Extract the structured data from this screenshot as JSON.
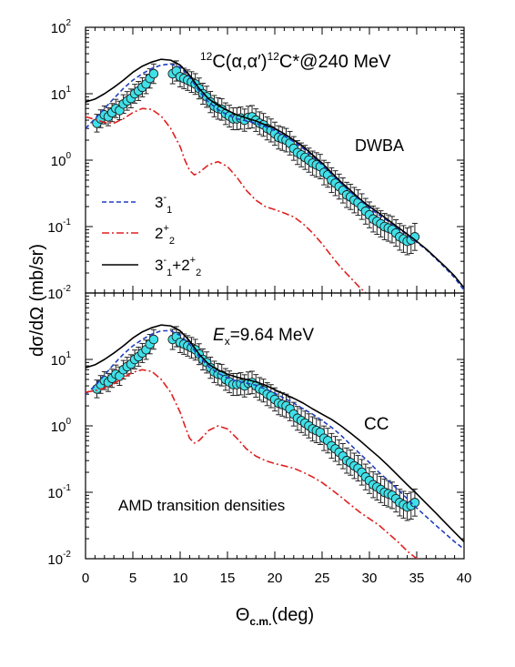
{
  "chart_data": [
    {
      "type": "line",
      "panel": "top",
      "title_parts": {
        "sup1": "12",
        "mid": "C(α,α′)",
        "sup2": "12",
        "tail": "C*@240 MeV"
      },
      "label": "DWBA",
      "ylabel": "dσ/dΩ (mb/sr)",
      "xlim": [
        0,
        40
      ],
      "ylim": [
        0.01,
        100
      ],
      "yscale": "log",
      "xticks": [
        "0",
        "5",
        "10",
        "15",
        "20",
        "25",
        "30",
        "35",
        "40"
      ],
      "yticks": [
        {
          "base": "10",
          "exp": "2"
        },
        {
          "base": "10",
          "exp": "1"
        },
        {
          "base": "10",
          "exp": "0"
        },
        {
          "base": "10",
          "exp": "-1"
        },
        {
          "base": "10",
          "exp": "-2"
        }
      ],
      "legend": [
        {
          "key": "3-1",
          "text": "3",
          "sup": "-",
          "sub": "1",
          "style": "dashed",
          "color": "#1f3fbf"
        },
        {
          "key": "2+2",
          "text": "2",
          "sup": "+",
          "sub": "2",
          "style": "dashdot",
          "color": "#e02020"
        },
        {
          "key": "sum",
          "text": "3⁻₁+2⁺₂",
          "style": "solid",
          "color": "#000000"
        }
      ],
      "series": [
        {
          "name": "3⁻₁",
          "style": "dashed",
          "color": "#1f3fbf",
          "x": [
            0,
            1,
            2,
            3,
            4,
            5,
            6,
            7,
            8,
            9,
            10,
            11,
            12,
            13,
            14,
            15,
            16,
            17,
            18,
            19,
            20,
            21,
            22,
            23,
            24,
            25,
            26,
            27,
            28,
            29,
            30,
            31,
            32,
            33,
            34,
            35,
            36,
            37,
            38,
            39,
            40
          ],
          "y": [
            3,
            4.2,
            6,
            8.5,
            12,
            16,
            20,
            24,
            27,
            28,
            25,
            18,
            11,
            7.5,
            5.8,
            4.8,
            4.2,
            3.9,
            3.6,
            3.2,
            2.8,
            2.3,
            1.9,
            1.5,
            1.15,
            0.85,
            0.62,
            0.45,
            0.33,
            0.25,
            0.19,
            0.15,
            0.12,
            0.095,
            0.075,
            0.058,
            0.045,
            0.033,
            0.024,
            0.017,
            0.011
          ]
        },
        {
          "name": "2⁺₂",
          "style": "dashdot",
          "color": "#e02020",
          "x": [
            0,
            1,
            2,
            3,
            4,
            5,
            6,
            7,
            8,
            9,
            10,
            10.5,
            11,
            11.5,
            12,
            13,
            14,
            15,
            16,
            17,
            18,
            19,
            20,
            21,
            22,
            23,
            24,
            25,
            26,
            27,
            28,
            29,
            30
          ],
          "y": [
            4.5,
            4.1,
            3.7,
            3.6,
            4.2,
            5.2,
            6,
            5.8,
            4.6,
            3,
            1.6,
            1,
            0.7,
            0.6,
            0.65,
            0.85,
            0.95,
            0.8,
            0.55,
            0.35,
            0.25,
            0.2,
            0.18,
            0.16,
            0.14,
            0.11,
            0.08,
            0.055,
            0.036,
            0.024,
            0.017,
            0.012,
            0.009
          ]
        },
        {
          "name": "3⁻₁+2⁺₂",
          "style": "solid",
          "color": "#000000",
          "x": [
            0,
            1,
            2,
            3,
            4,
            5,
            6,
            7,
            8,
            9,
            10,
            11,
            12,
            13,
            14,
            15,
            16,
            17,
            18,
            19,
            20,
            21,
            22,
            23,
            24,
            25,
            26,
            27,
            28,
            29,
            30,
            31,
            32,
            33,
            34,
            35,
            36,
            37,
            38,
            39,
            40
          ],
          "y": [
            7.5,
            8.3,
            10,
            12.5,
            16,
            21,
            26,
            30,
            33,
            32,
            27,
            19,
            12,
            8.4,
            6.7,
            5.6,
            4.8,
            4.3,
            3.9,
            3.4,
            3,
            2.5,
            2,
            1.6,
            1.2,
            0.9,
            0.65,
            0.47,
            0.35,
            0.26,
            0.2,
            0.16,
            0.125,
            0.098,
            0.077,
            0.06,
            0.046,
            0.034,
            0.025,
            0.018,
            0.012
          ]
        }
      ],
      "data_points": {
        "x": [
          1.2,
          1.6,
          2,
          2.4,
          2.8,
          3.2,
          3.6,
          4,
          4.4,
          4.8,
          5.2,
          5.6,
          6,
          6.4,
          6.8,
          7.2,
          9.2,
          9.6,
          10,
          10.4,
          10.8,
          11.2,
          11.6,
          12,
          12.4,
          12.8,
          13.2,
          13.6,
          14,
          14.4,
          14.8,
          15.2,
          15.6,
          16,
          16.4,
          16.8,
          17.2,
          17.6,
          18,
          18.4,
          18.8,
          19.2,
          19.6,
          20,
          20.4,
          20.8,
          21.2,
          21.6,
          22,
          22.4,
          22.8,
          23.2,
          23.6,
          24,
          24.4,
          24.8,
          25.2,
          25.6,
          26,
          26.4,
          26.8,
          27.2,
          27.6,
          28,
          28.4,
          28.8,
          29.2,
          29.6,
          30,
          30.4,
          30.8,
          31.2,
          31.6,
          32,
          32.4,
          32.8,
          33.2,
          33.6,
          34,
          34.4,
          34.8
        ],
        "y": [
          3.6,
          4.2,
          4.8,
          4.5,
          5.2,
          6,
          5.6,
          7,
          7.8,
          8.5,
          10,
          11,
          12.5,
          14,
          17,
          20,
          20,
          22,
          18,
          17,
          16,
          15,
          14,
          12,
          10,
          9,
          7.5,
          6.5,
          6,
          5.8,
          5,
          4.6,
          4.2,
          4.2,
          4.3,
          4,
          4.4,
          4.5,
          4,
          3.6,
          3.4,
          3,
          2.8,
          2.5,
          2.2,
          2.1,
          2,
          1.8,
          1.5,
          1.3,
          1.2,
          1.1,
          1,
          0.9,
          0.85,
          0.8,
          0.65,
          0.6,
          0.5,
          0.45,
          0.4,
          0.35,
          0.3,
          0.28,
          0.25,
          0.23,
          0.2,
          0.17,
          0.15,
          0.13,
          0.12,
          0.11,
          0.1,
          0.095,
          0.09,
          0.08,
          0.07,
          0.065,
          0.06,
          0.063,
          0.07
        ]
      }
    },
    {
      "type": "line",
      "panel": "bottom",
      "annotation_ex": {
        "italic": "E",
        "sub": "x",
        "rest": "=9.64 MeV"
      },
      "label": "CC",
      "annotation": "AMD transition densities",
      "xlabel": {
        "main": "Θ",
        "sub": "c.m.",
        "rest": "(deg)"
      },
      "xlim": [
        0,
        40
      ],
      "ylim": [
        0.01,
        100
      ],
      "yscale": "log",
      "xticks": [
        "0",
        "5",
        "10",
        "15",
        "20",
        "25",
        "30",
        "35",
        "40"
      ],
      "yticks": [
        {
          "base": "10",
          "exp": "1"
        },
        {
          "base": "10",
          "exp": "0"
        },
        {
          "base": "10",
          "exp": "-1"
        },
        {
          "base": "10",
          "exp": "-2"
        }
      ],
      "series": [
        {
          "name": "3⁻₁",
          "style": "dashed",
          "color": "#1f3fbf",
          "x": [
            0,
            1,
            2,
            3,
            4,
            5,
            6,
            7,
            8,
            9,
            10,
            11,
            12,
            13,
            14,
            15,
            16,
            17,
            18,
            19,
            20,
            21,
            22,
            23,
            24,
            25,
            26,
            27,
            28,
            29,
            30,
            31,
            32,
            33,
            34,
            35,
            36,
            37,
            38,
            39,
            40
          ],
          "y": [
            3,
            4,
            5.8,
            8.5,
            12,
            16,
            20,
            24,
            27,
            27,
            23,
            17,
            11,
            7.8,
            6.2,
            5.3,
            4.7,
            4.4,
            4.1,
            3.6,
            3.1,
            2.6,
            2.2,
            1.8,
            1.5,
            1.2,
            0.95,
            0.72,
            0.52,
            0.38,
            0.28,
            0.2,
            0.15,
            0.11,
            0.08,
            0.058,
            0.043,
            0.032,
            0.024,
            0.018,
            0.014
          ]
        },
        {
          "name": "2⁺₂",
          "style": "dashdot",
          "color": "#e02020",
          "x": [
            0,
            1,
            2,
            3,
            4,
            5,
            6,
            7,
            8,
            9,
            10,
            10.5,
            11,
            11.5,
            12,
            13,
            14,
            15,
            16,
            17,
            18,
            19,
            20,
            21,
            22,
            23,
            24,
            25,
            26,
            27,
            28,
            29,
            30,
            31,
            32,
            33,
            34,
            35,
            36
          ],
          "y": [
            3.2,
            3.4,
            3.7,
            4.3,
            5.3,
            6.4,
            7,
            6.6,
            5,
            3.2,
            1.6,
            1,
            0.65,
            0.55,
            0.6,
            0.85,
            1,
            0.9,
            0.65,
            0.45,
            0.35,
            0.3,
            0.27,
            0.25,
            0.23,
            0.2,
            0.17,
            0.14,
            0.11,
            0.085,
            0.065,
            0.05,
            0.04,
            0.032,
            0.024,
            0.018,
            0.013,
            0.01,
            0.008
          ]
        },
        {
          "name": "3⁻₁+2⁺₂",
          "style": "solid",
          "color": "#000000",
          "x": [
            0,
            1,
            2,
            3,
            4,
            5,
            6,
            7,
            8,
            9,
            10,
            11,
            12,
            13,
            14,
            15,
            16,
            17,
            18,
            19,
            20,
            21,
            22,
            23,
            24,
            25,
            26,
            27,
            28,
            29,
            30,
            31,
            32,
            33,
            34,
            35,
            36,
            37,
            38,
            39,
            40
          ],
          "y": [
            7.5,
            8.3,
            10,
            12.5,
            16,
            21,
            26,
            30,
            33,
            32,
            27,
            19,
            12,
            8.5,
            6.9,
            6,
            5.4,
            5,
            4.6,
            4.1,
            3.5,
            3,
            2.6,
            2.2,
            1.8,
            1.5,
            1.25,
            1,
            0.78,
            0.6,
            0.45,
            0.34,
            0.25,
            0.18,
            0.13,
            0.095,
            0.068,
            0.049,
            0.035,
            0.025,
            0.018
          ]
        }
      ],
      "data_points": {
        "x": [
          1.2,
          1.6,
          2,
          2.4,
          2.8,
          3.2,
          3.6,
          4,
          4.4,
          4.8,
          5.2,
          5.6,
          6,
          6.4,
          6.8,
          7.2,
          9.2,
          9.6,
          10,
          10.4,
          10.8,
          11.2,
          11.6,
          12,
          12.4,
          12.8,
          13.2,
          13.6,
          14,
          14.4,
          14.8,
          15.2,
          15.6,
          16,
          16.4,
          16.8,
          17.2,
          17.6,
          18,
          18.4,
          18.8,
          19.2,
          19.6,
          20,
          20.4,
          20.8,
          21.2,
          21.6,
          22,
          22.4,
          22.8,
          23.2,
          23.6,
          24,
          24.4,
          24.8,
          25.2,
          25.6,
          26,
          26.4,
          26.8,
          27.2,
          27.6,
          28,
          28.4,
          28.8,
          29.2,
          29.6,
          30,
          30.4,
          30.8,
          31.2,
          31.6,
          32,
          32.4,
          32.8,
          33.2,
          33.6,
          34,
          34.4,
          34.8
        ],
        "y": [
          3.6,
          4.2,
          4.8,
          4.5,
          5.2,
          6,
          5.6,
          7,
          7.8,
          8.5,
          10,
          11,
          12.5,
          14,
          17,
          20,
          20,
          22,
          18,
          17,
          16,
          15,
          14,
          12,
          10,
          9,
          7.5,
          6.5,
          6,
          5.8,
          5,
          4.6,
          4.2,
          4.2,
          4.3,
          4,
          4.4,
          4.5,
          4,
          3.6,
          3.4,
          3,
          2.8,
          2.5,
          2.2,
          2.1,
          2,
          1.8,
          1.5,
          1.3,
          1.2,
          1.1,
          1,
          0.9,
          0.85,
          0.8,
          0.65,
          0.6,
          0.5,
          0.45,
          0.4,
          0.35,
          0.3,
          0.28,
          0.25,
          0.23,
          0.2,
          0.17,
          0.15,
          0.13,
          0.12,
          0.11,
          0.1,
          0.095,
          0.09,
          0.08,
          0.07,
          0.065,
          0.06,
          0.063,
          0.07
        ]
      }
    }
  ],
  "colors": {
    "marker_fill": "#40e0e8",
    "marker_stroke": "#1a1a1a",
    "axis": "#000000"
  }
}
